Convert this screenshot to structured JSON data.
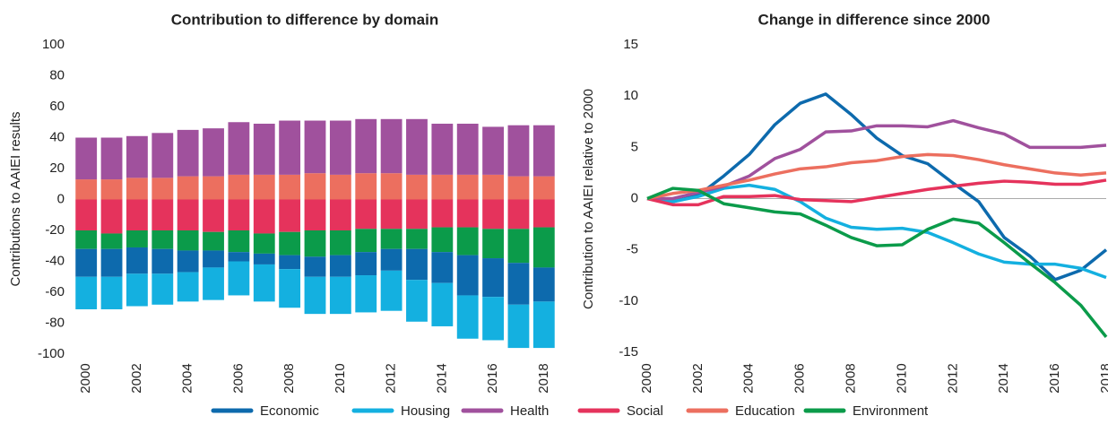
{
  "chart_data": [
    {
      "type": "stacked-bar",
      "title": "Contribution to difference by domain",
      "y_label": "Contributions to AAIEI results",
      "categories": [
        "2000",
        null,
        "2002",
        null,
        "2004",
        null,
        "2006",
        null,
        "2008",
        null,
        "2010",
        null,
        "2012",
        null,
        "2014",
        null,
        "2016",
        null,
        "2018"
      ],
      "ylim": [
        -100,
        100
      ],
      "yticks": [
        -100,
        -80,
        -60,
        -40,
        -20,
        0,
        20,
        40,
        60,
        80,
        100
      ],
      "grid": false,
      "series": [
        {
          "name": "Economic",
          "color": "#0d6aad",
          "values": [
            -18,
            -18,
            -17,
            -16,
            -14,
            -11,
            -6,
            -7,
            -9,
            -13,
            -14,
            -15,
            -14,
            -20,
            -20,
            -26,
            -25,
            -27,
            -22
          ]
        },
        {
          "name": "Housing",
          "color": "#14b0e0",
          "values": [
            -21,
            -21,
            -21,
            -20,
            -19,
            -21,
            -22,
            -24,
            -25,
            -24,
            -24,
            -24,
            -26,
            -27,
            -28,
            -28,
            -28,
            -28,
            -30
          ]
        },
        {
          "name": "Health",
          "color": "#a0519d",
          "values": [
            27,
            27,
            27,
            29,
            30,
            31,
            34,
            33,
            35,
            34,
            35,
            35,
            35,
            36,
            33,
            33,
            31,
            33,
            33
          ]
        },
        {
          "name": "Social",
          "color": "#e5335c",
          "values": [
            -20,
            -22,
            -20,
            -20,
            -20,
            -21,
            -20,
            -22,
            -21,
            -20,
            -20,
            -19,
            -19,
            -19,
            -18,
            -18,
            -19,
            -19,
            -18
          ]
        },
        {
          "name": "Education",
          "color": "#ec6f5f",
          "values": [
            13,
            13,
            14,
            14,
            15,
            15,
            16,
            16,
            16,
            17,
            16,
            17,
            17,
            16,
            16,
            16,
            16,
            15,
            15
          ]
        },
        {
          "name": "Environment",
          "color": "#0b9b4a",
          "values": [
            -12,
            -10,
            -11,
            -12,
            -13,
            -12,
            -14,
            -13,
            -15,
            -17,
            -16,
            -15,
            -13,
            -13,
            -16,
            -18,
            -19,
            -22,
            -26
          ]
        }
      ]
    },
    {
      "type": "line",
      "title": "Change in difference since 2000",
      "y_label": "Contribution to AAIEI relative to 2000",
      "x": [
        2000,
        2001,
        2002,
        2003,
        2004,
        2005,
        2006,
        2007,
        2008,
        2009,
        2010,
        2011,
        2012,
        2013,
        2014,
        2015,
        2016,
        2017,
        2018
      ],
      "xlim": [
        2000,
        2018
      ],
      "xticks": [
        2000,
        2002,
        2004,
        2006,
        2008,
        2010,
        2012,
        2014,
        2016,
        2018
      ],
      "ylim": [
        -15,
        15
      ],
      "yticks": [
        -15,
        -10,
        -5,
        0,
        5,
        10,
        15
      ],
      "grid": false,
      "series": [
        {
          "color": "#0d6aad",
          "values": [
            0,
            -0.3,
            0.3,
            2.2,
            4.3,
            7.2,
            9.3,
            10.2,
            8.2,
            5.9,
            4.2,
            3.4,
            1.5,
            -0.3,
            -3.8,
            -5.6,
            -7.9,
            -7.0,
            -5.0
          ]
        },
        {
          "color": "#14b0e0",
          "values": [
            0,
            -0.3,
            0.2,
            1.0,
            1.3,
            0.9,
            -0.3,
            -1.9,
            -2.8,
            -3.0,
            -2.9,
            -3.3,
            -4.3,
            -5.4,
            -6.2,
            -6.4,
            -6.4,
            -6.8,
            -7.7
          ]
        },
        {
          "color": "#a0519d",
          "values": [
            0,
            0,
            0.6,
            1.2,
            2.2,
            3.9,
            4.8,
            6.5,
            6.6,
            7.1,
            7.1,
            7.0,
            7.6,
            6.9,
            6.3,
            5.0,
            5.0,
            5.0,
            5.2
          ]
        },
        {
          "color": "#e5335c",
          "values": [
            0,
            -0.6,
            -0.6,
            0.2,
            0.2,
            0.3,
            -0.1,
            -0.2,
            -0.3,
            0.1,
            0.5,
            0.9,
            1.2,
            1.5,
            1.7,
            1.6,
            1.4,
            1.4,
            1.8
          ]
        },
        {
          "color": "#ec6f5f",
          "values": [
            0,
            0.5,
            0.8,
            1.3,
            1.8,
            2.4,
            2.9,
            3.1,
            3.5,
            3.7,
            4.1,
            4.3,
            4.2,
            3.8,
            3.3,
            2.9,
            2.5,
            2.3,
            2.5
          ]
        },
        {
          "color": "#0b9b4a",
          "values": [
            0,
            1.0,
            0.8,
            -0.5,
            -0.9,
            -1.3,
            -1.5,
            -2.6,
            -3.8,
            -4.6,
            -4.5,
            -3.0,
            -2.0,
            -2.4,
            -4.3,
            -6.3,
            -8.2,
            -10.4,
            -13.5
          ]
        }
      ]
    }
  ]
}
